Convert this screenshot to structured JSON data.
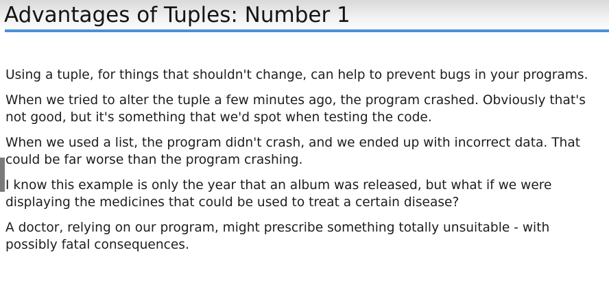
{
  "slide": {
    "title": "Advantages of Tuples: Number 1",
    "paragraphs": [
      [
        "Using a tuple, for things that shouldn't change, can help to prevent bugs in your programs."
      ],
      [
        "When we tried to alter the tuple a few minutes ago, the program crashed. Obviously that's",
        "not good, but it's something that we'd spot when testing the code."
      ],
      [
        "When we used a list, the program didn't crash, and we ended up with incorrect data. That",
        "could be far worse than the program crashing."
      ],
      [
        "I know this example is only the year that an album was released,  but what if we were",
        "displaying the medicines that could be used to treat a certain disease?"
      ],
      [
        "A doctor, relying on our program, might prescribe something totally unsuitable - with",
        "possibly fatal consequences."
      ]
    ]
  },
  "colors": {
    "accent_rule": "#4a90d9",
    "text": "#1c1c1c"
  }
}
